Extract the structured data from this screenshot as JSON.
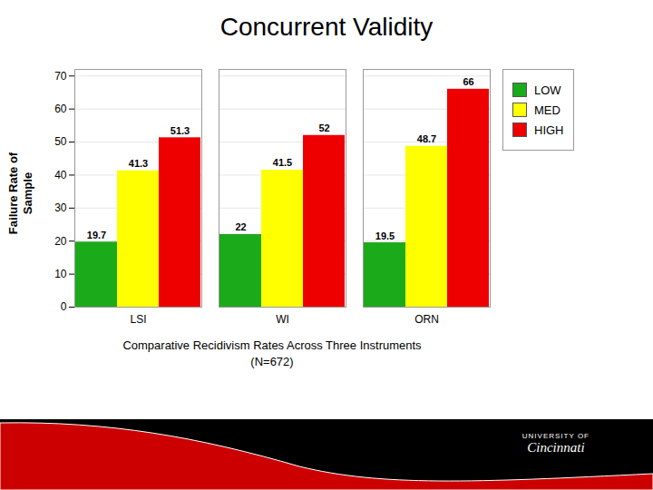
{
  "chart_data": {
    "type": "bar",
    "title": "Concurrent Validity",
    "subtitle": "Comparative Recidivism Rates Across Three Instruments\n(N=672)",
    "ylabel": "Failure Rate of\nSample",
    "categories": [
      "LSI",
      "WI",
      "ORN"
    ],
    "series": [
      {
        "name": "LOW",
        "color": "#1aaa1a",
        "values": [
          19.7,
          22.0,
          19.5
        ]
      },
      {
        "name": "MED",
        "color": "#ffff00",
        "values": [
          41.3,
          41.5,
          48.7
        ]
      },
      {
        "name": "HIGH",
        "color": "#ee0000",
        "values": [
          51.3,
          52.0,
          66.0
        ]
      }
    ],
    "ylim": [
      0,
      72
    ],
    "yticks": [
      0,
      10,
      20,
      30,
      40,
      50,
      60,
      70
    ],
    "grid": true,
    "legend": "right",
    "data_labels": true,
    "annotations": [
      "UNIVERSITY OF",
      "Cincinnati"
    ]
  }
}
